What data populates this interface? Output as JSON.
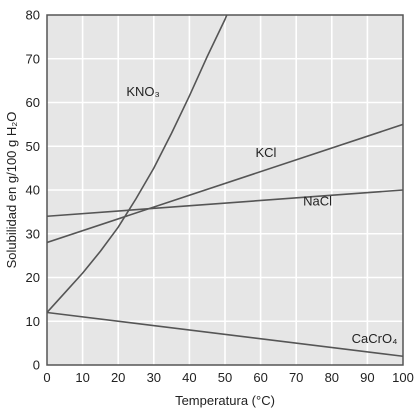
{
  "chart_data": {
    "type": "line",
    "title": "",
    "xlabel": "Temperatura (°C)",
    "ylabel": "Solubilidad en g/100 g H₂O",
    "xlim": [
      0,
      100
    ],
    "ylim": [
      0,
      80
    ],
    "x_ticks": [
      "0",
      "10",
      "20",
      "30",
      "40",
      "50",
      "60",
      "70",
      "80",
      "90",
      "100"
    ],
    "y_ticks": [
      "0",
      "10",
      "20",
      "30",
      "40",
      "50",
      "60",
      "70",
      "80"
    ],
    "grid": true,
    "colors": {
      "plot_bg": "#e6e6e6",
      "grid": "#ffffff",
      "line": "#555555",
      "frame": "#555555"
    },
    "series": [
      {
        "name": "KNO₃",
        "x": [
          0,
          5,
          10,
          15,
          20,
          25,
          30,
          35,
          40,
          45,
          50,
          51
        ],
        "y": [
          12,
          16.5,
          21,
          26,
          31.5,
          38,
          45,
          53,
          61.5,
          70.5,
          79,
          81
        ]
      },
      {
        "name": "KCl",
        "x": [
          0,
          100
        ],
        "y": [
          28,
          55
        ]
      },
      {
        "name": "NaCl",
        "x": [
          0,
          100
        ],
        "y": [
          34,
          40
        ]
      },
      {
        "name": "CaCrO₄",
        "x": [
          0,
          100
        ],
        "y": [
          12,
          2
        ]
      }
    ],
    "labels": [
      {
        "text": "KNO₃",
        "x": 27,
        "y": 61.5
      },
      {
        "text": "KCl",
        "x": 61.5,
        "y": 47.5
      },
      {
        "text": "NaCl",
        "x": 76,
        "y": 36.5
      },
      {
        "text": "CaCrO₄",
        "x": 92,
        "y": 5
      }
    ]
  }
}
